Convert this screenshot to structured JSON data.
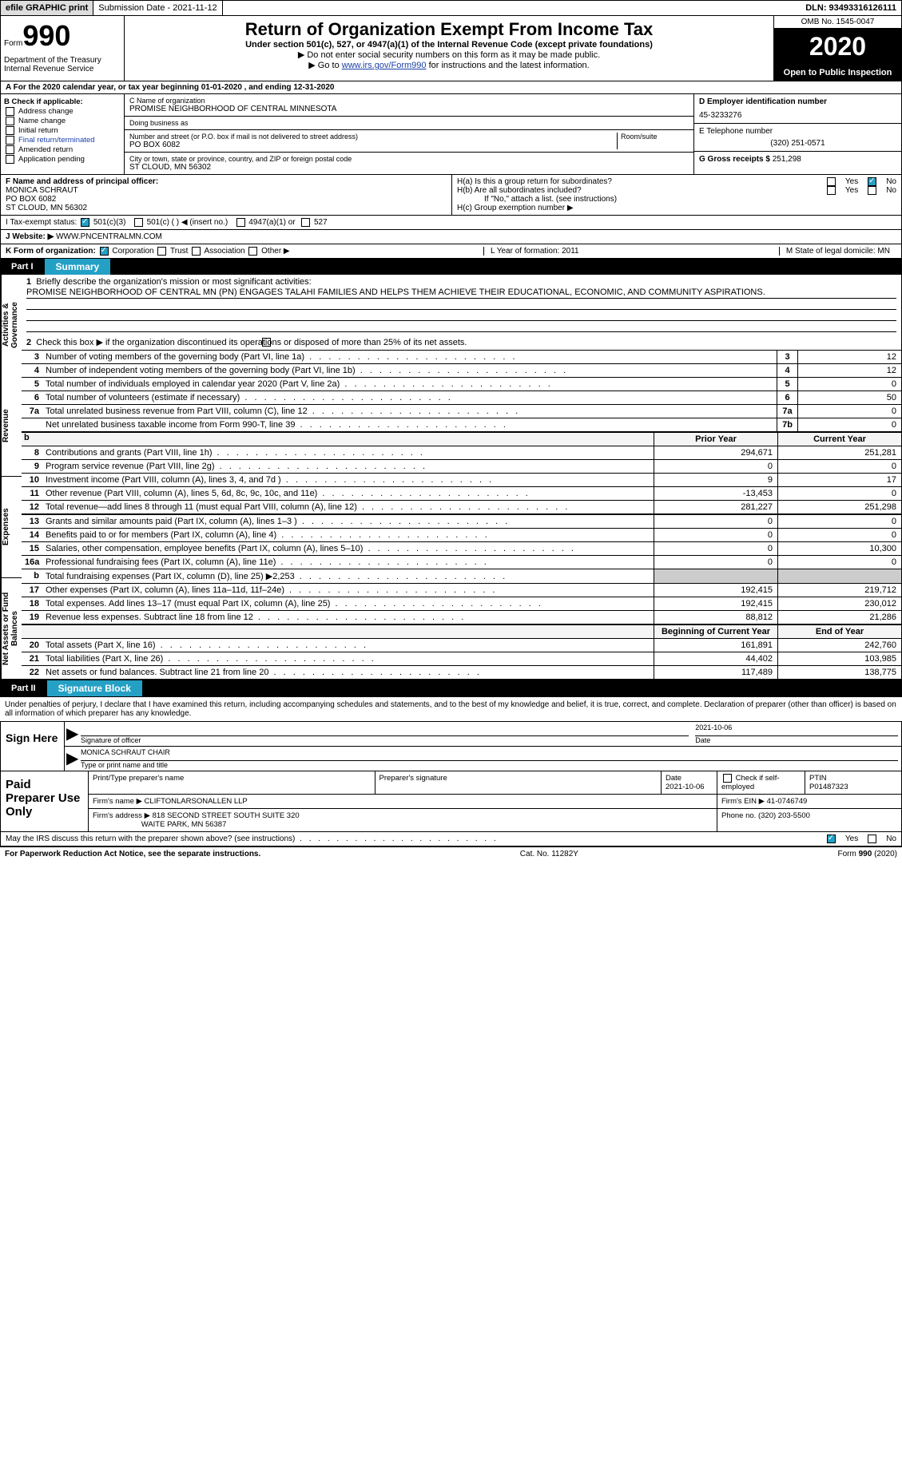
{
  "top": {
    "efile": "efile GRAPHIC print",
    "sub_label": "Submission Date - 2021-11-12",
    "dln": "DLN: 93493316126111"
  },
  "header": {
    "form_word": "Form",
    "form_num": "990",
    "dept": "Department of the Treasury\nInternal Revenue Service",
    "title": "Return of Organization Exempt From Income Tax",
    "sub": "Under section 501(c), 527, or 4947(a)(1) of the Internal Revenue Code (except private foundations)",
    "hint1": "▶ Do not enter social security numbers on this form as it may be made public.",
    "hint2_pre": "▶ Go to ",
    "hint2_link": "www.irs.gov/Form990",
    "hint2_post": " for instructions and the latest information.",
    "omb": "OMB No. 1545-0047",
    "year": "2020",
    "inspection": "Open to Public Inspection"
  },
  "year_line": "A For the 2020 calendar year, or tax year beginning 01-01-2020    , and ending 12-31-2020",
  "colB": {
    "header": "B Check if applicable:",
    "items": [
      "Address change",
      "Name change",
      "Initial return",
      "Final return/terminated",
      "Amended return",
      "Application pending"
    ]
  },
  "colC": {
    "name_label": "C Name of organization",
    "name": "PROMISE NEIGHBORHOOD OF CENTRAL MINNESOTA",
    "dba_label": "Doing business as",
    "dba": "",
    "street_label": "Number and street (or P.O. box if mail is not delivered to street address)",
    "room_label": "Room/suite",
    "street": "PO BOX 6082",
    "city_label": "City or town, state or province, country, and ZIP or foreign postal code",
    "city": "ST CLOUD, MN  56302"
  },
  "colD": {
    "ein_label": "D Employer identification number",
    "ein": "45-3233276",
    "phone_label": "E Telephone number",
    "phone": "(320) 251-0571",
    "receipts_label": "G Gross receipts $",
    "receipts": "251,298"
  },
  "rowF": {
    "label": "F Name and address of principal officer:",
    "name": "MONICA SCHRAUT",
    "street": "PO BOX 6082",
    "city": "ST CLOUD, MN  56302"
  },
  "rowH": {
    "a": "H(a)  Is this a group return for subordinates?",
    "b": "H(b)  Are all subordinates included?",
    "b_note": "If \"No,\" attach a list. (see instructions)",
    "c": "H(c)  Group exemption number ▶"
  },
  "rowI": {
    "label": "I   Tax-exempt status:",
    "opts": [
      "501(c)(3)",
      "501(c) (  ) ◀ (insert no.)",
      "4947(a)(1) or",
      "527"
    ]
  },
  "rowJ": {
    "label": "J   Website: ▶",
    "val": "WWW.PNCENTRALMN.COM"
  },
  "rowK": {
    "label": "K Form of organization:",
    "opts": [
      "Corporation",
      "Trust",
      "Association",
      "Other ▶"
    ],
    "formation": "L Year of formation: 2011",
    "domicile": "M State of legal domicile: MN"
  },
  "partI": {
    "num": "Part I",
    "title": "Summary"
  },
  "p1": {
    "l1": "Briefly describe the organization's mission or most significant activities:",
    "mission": "PROMISE NEIGHBORHOOD OF CENTRAL MN (PN) ENGAGES TALAHI FAMILIES AND HELPS THEM ACHIEVE THEIR EDUCATIONAL, ECONOMIC, AND COMMUNITY ASPIRATIONS.",
    "l2": "Check this box ▶       if the organization discontinued its operations or disposed of more than 25% of its net assets.",
    "rows_gov": [
      {
        "n": "3",
        "d": "Number of voting members of the governing body (Part VI, line 1a)",
        "box": "3",
        "v": "12"
      },
      {
        "n": "4",
        "d": "Number of independent voting members of the governing body (Part VI, line 1b)",
        "box": "4",
        "v": "12"
      },
      {
        "n": "5",
        "d": "Total number of individuals employed in calendar year 2020 (Part V, line 2a)",
        "box": "5",
        "v": "0"
      },
      {
        "n": "6",
        "d": "Total number of volunteers (estimate if necessary)",
        "box": "6",
        "v": "50"
      },
      {
        "n": "7a",
        "d": "Total unrelated business revenue from Part VIII, column (C), line 12",
        "box": "7a",
        "v": "0"
      },
      {
        "n": "",
        "d": "Net unrelated business taxable income from Form 990-T, line 39",
        "box": "7b",
        "v": "0"
      }
    ],
    "hdr_prior": "Prior Year",
    "hdr_curr": "Current Year",
    "revenue": [
      {
        "n": "8",
        "d": "Contributions and grants (Part VIII, line 1h)",
        "p": "294,671",
        "c": "251,281"
      },
      {
        "n": "9",
        "d": "Program service revenue (Part VIII, line 2g)",
        "p": "0",
        "c": "0"
      },
      {
        "n": "10",
        "d": "Investment income (Part VIII, column (A), lines 3, 4, and 7d )",
        "p": "9",
        "c": "17"
      },
      {
        "n": "11",
        "d": "Other revenue (Part VIII, column (A), lines 5, 6d, 8c, 9c, 10c, and 11e)",
        "p": "-13,453",
        "c": "0"
      },
      {
        "n": "12",
        "d": "Total revenue—add lines 8 through 11 (must equal Part VIII, column (A), line 12)",
        "p": "281,227",
        "c": "251,298"
      }
    ],
    "expenses": [
      {
        "n": "13",
        "d": "Grants and similar amounts paid (Part IX, column (A), lines 1–3 )",
        "p": "0",
        "c": "0"
      },
      {
        "n": "14",
        "d": "Benefits paid to or for members (Part IX, column (A), line 4)",
        "p": "0",
        "c": "0"
      },
      {
        "n": "15",
        "d": "Salaries, other compensation, employee benefits (Part IX, column (A), lines 5–10)",
        "p": "0",
        "c": "10,300"
      },
      {
        "n": "16a",
        "d": "Professional fundraising fees (Part IX, column (A), line 11e)",
        "p": "0",
        "c": "0"
      },
      {
        "n": "b",
        "d": "Total fundraising expenses (Part IX, column (D), line 25) ▶2,253",
        "p": "shade",
        "c": "shade"
      },
      {
        "n": "17",
        "d": "Other expenses (Part IX, column (A), lines 11a–11d, 11f–24e)",
        "p": "192,415",
        "c": "219,712"
      },
      {
        "n": "18",
        "d": "Total expenses. Add lines 13–17 (must equal Part IX, column (A), line 25)",
        "p": "192,415",
        "c": "230,012"
      },
      {
        "n": "19",
        "d": "Revenue less expenses. Subtract line 18 from line 12",
        "p": "88,812",
        "c": "21,286"
      }
    ],
    "hdr_begin": "Beginning of Current Year",
    "hdr_end": "End of Year",
    "net": [
      {
        "n": "20",
        "d": "Total assets (Part X, line 16)",
        "p": "161,891",
        "c": "242,760"
      },
      {
        "n": "21",
        "d": "Total liabilities (Part X, line 26)",
        "p": "44,402",
        "c": "103,985"
      },
      {
        "n": "22",
        "d": "Net assets or fund balances. Subtract line 21 from line 20",
        "p": "117,489",
        "c": "138,775"
      }
    ],
    "vtabs": [
      "Activities & Governance",
      "Revenue",
      "Expenses",
      "Net Assets or Fund Balances"
    ]
  },
  "partII": {
    "num": "Part II",
    "title": "Signature Block"
  },
  "sig": {
    "intro": "Under penalties of perjury, I declare that I have examined this return, including accompanying schedules and statements, and to the best of my knowledge and belief, it is true, correct, and complete. Declaration of preparer (other than officer) is based on all information of which preparer has any knowledge.",
    "sign_here": "Sign Here",
    "sig_of_officer": "Signature of officer",
    "date": "2021-10-06",
    "date_label": "Date",
    "name": "MONICA SCHRAUT CHAIR",
    "name_label": "Type or print name and title"
  },
  "paid": {
    "label": "Paid Preparer Use Only",
    "h_print": "Print/Type preparer's name",
    "h_sig": "Preparer's signature",
    "h_date": "Date",
    "date": "2021-10-06",
    "h_check": "Check        if self-employed",
    "h_ptin": "PTIN",
    "ptin": "P01487323",
    "firm_name_label": "Firm's name    ▶",
    "firm_name": "CLIFTONLARSONALLEN LLP",
    "firm_ein_label": "Firm's EIN ▶",
    "firm_ein": "41-0746749",
    "firm_addr_label": "Firm's address ▶",
    "firm_addr": "818 SECOND STREET SOUTH SUITE 320",
    "firm_city": "WAITE PARK, MN  56387",
    "phone_label": "Phone no.",
    "phone": "(320) 203-5500"
  },
  "discuss": "May the IRS discuss this return with the preparer shown above? (see instructions)",
  "footer": {
    "left": "For Paperwork Reduction Act Notice, see the separate instructions.",
    "mid": "Cat. No. 11282Y",
    "right": "Form 990 (2020)"
  }
}
